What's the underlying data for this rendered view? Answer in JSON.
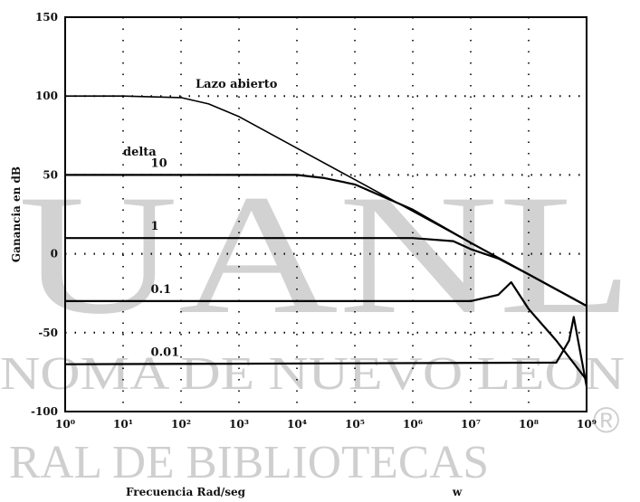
{
  "chart_data": {
    "type": "line",
    "title": "",
    "xlabel": "Frecuencia Rad/seg",
    "x_axis_end_label": "w",
    "ylabel": "Ganancia en dB",
    "x_scale": "log",
    "xlim": [
      1,
      1000000000
    ],
    "ylim": [
      -100,
      150
    ],
    "grid": true,
    "y_ticks": [
      150,
      100,
      50,
      0,
      -50,
      -100
    ],
    "x_tick_labels": [
      "10⁰",
      "10¹",
      "10²",
      "10³",
      "10⁴",
      "10⁵",
      "10⁶",
      "10⁷",
      "10⁸",
      "10⁹"
    ],
    "x_tick_values": [
      1,
      10,
      100,
      1000,
      10000,
      100000,
      1000000,
      10000000,
      100000000,
      1000000000
    ],
    "delta_header": "delta",
    "series": [
      {
        "name": "Lazo abierto",
        "x": [
          1,
          10,
          100,
          300,
          1000,
          10000,
          100000,
          1000000,
          10000000,
          100000000,
          1000000000
        ],
        "y": [
          100,
          100,
          99,
          95,
          87,
          67,
          47,
          27,
          7,
          -13,
          -33
        ]
      },
      {
        "name": "10",
        "x": [
          1,
          1000,
          10000,
          30000,
          100000,
          1000000,
          10000000,
          100000000,
          1000000000
        ],
        "y": [
          50,
          50,
          50,
          48,
          44,
          28,
          7,
          -13,
          -33
        ]
      },
      {
        "name": "1",
        "x": [
          1,
          1000000,
          5000000,
          10000000,
          30000000,
          100000000,
          1000000000
        ],
        "y": [
          10,
          10,
          8,
          3,
          -3,
          -13,
          -33
        ]
      },
      {
        "name": "0.1",
        "x": [
          1,
          10000000,
          30000000,
          50000000,
          100000000,
          300000000,
          1000000000
        ],
        "y": [
          -30,
          -30,
          -26,
          -18,
          -35,
          -55,
          -80
        ]
      },
      {
        "name": "0.01",
        "x": [
          1,
          300000000,
          500000000,
          600000000,
          1000000000
        ],
        "y": [
          -70,
          -69,
          -55,
          -40,
          -84
        ]
      }
    ]
  },
  "watermark": {
    "large": "UANL",
    "line1": "NOMA DE NUEVO LEON",
    "line2": "RAL DE BIBLIOTECAS",
    "mark": "®"
  }
}
